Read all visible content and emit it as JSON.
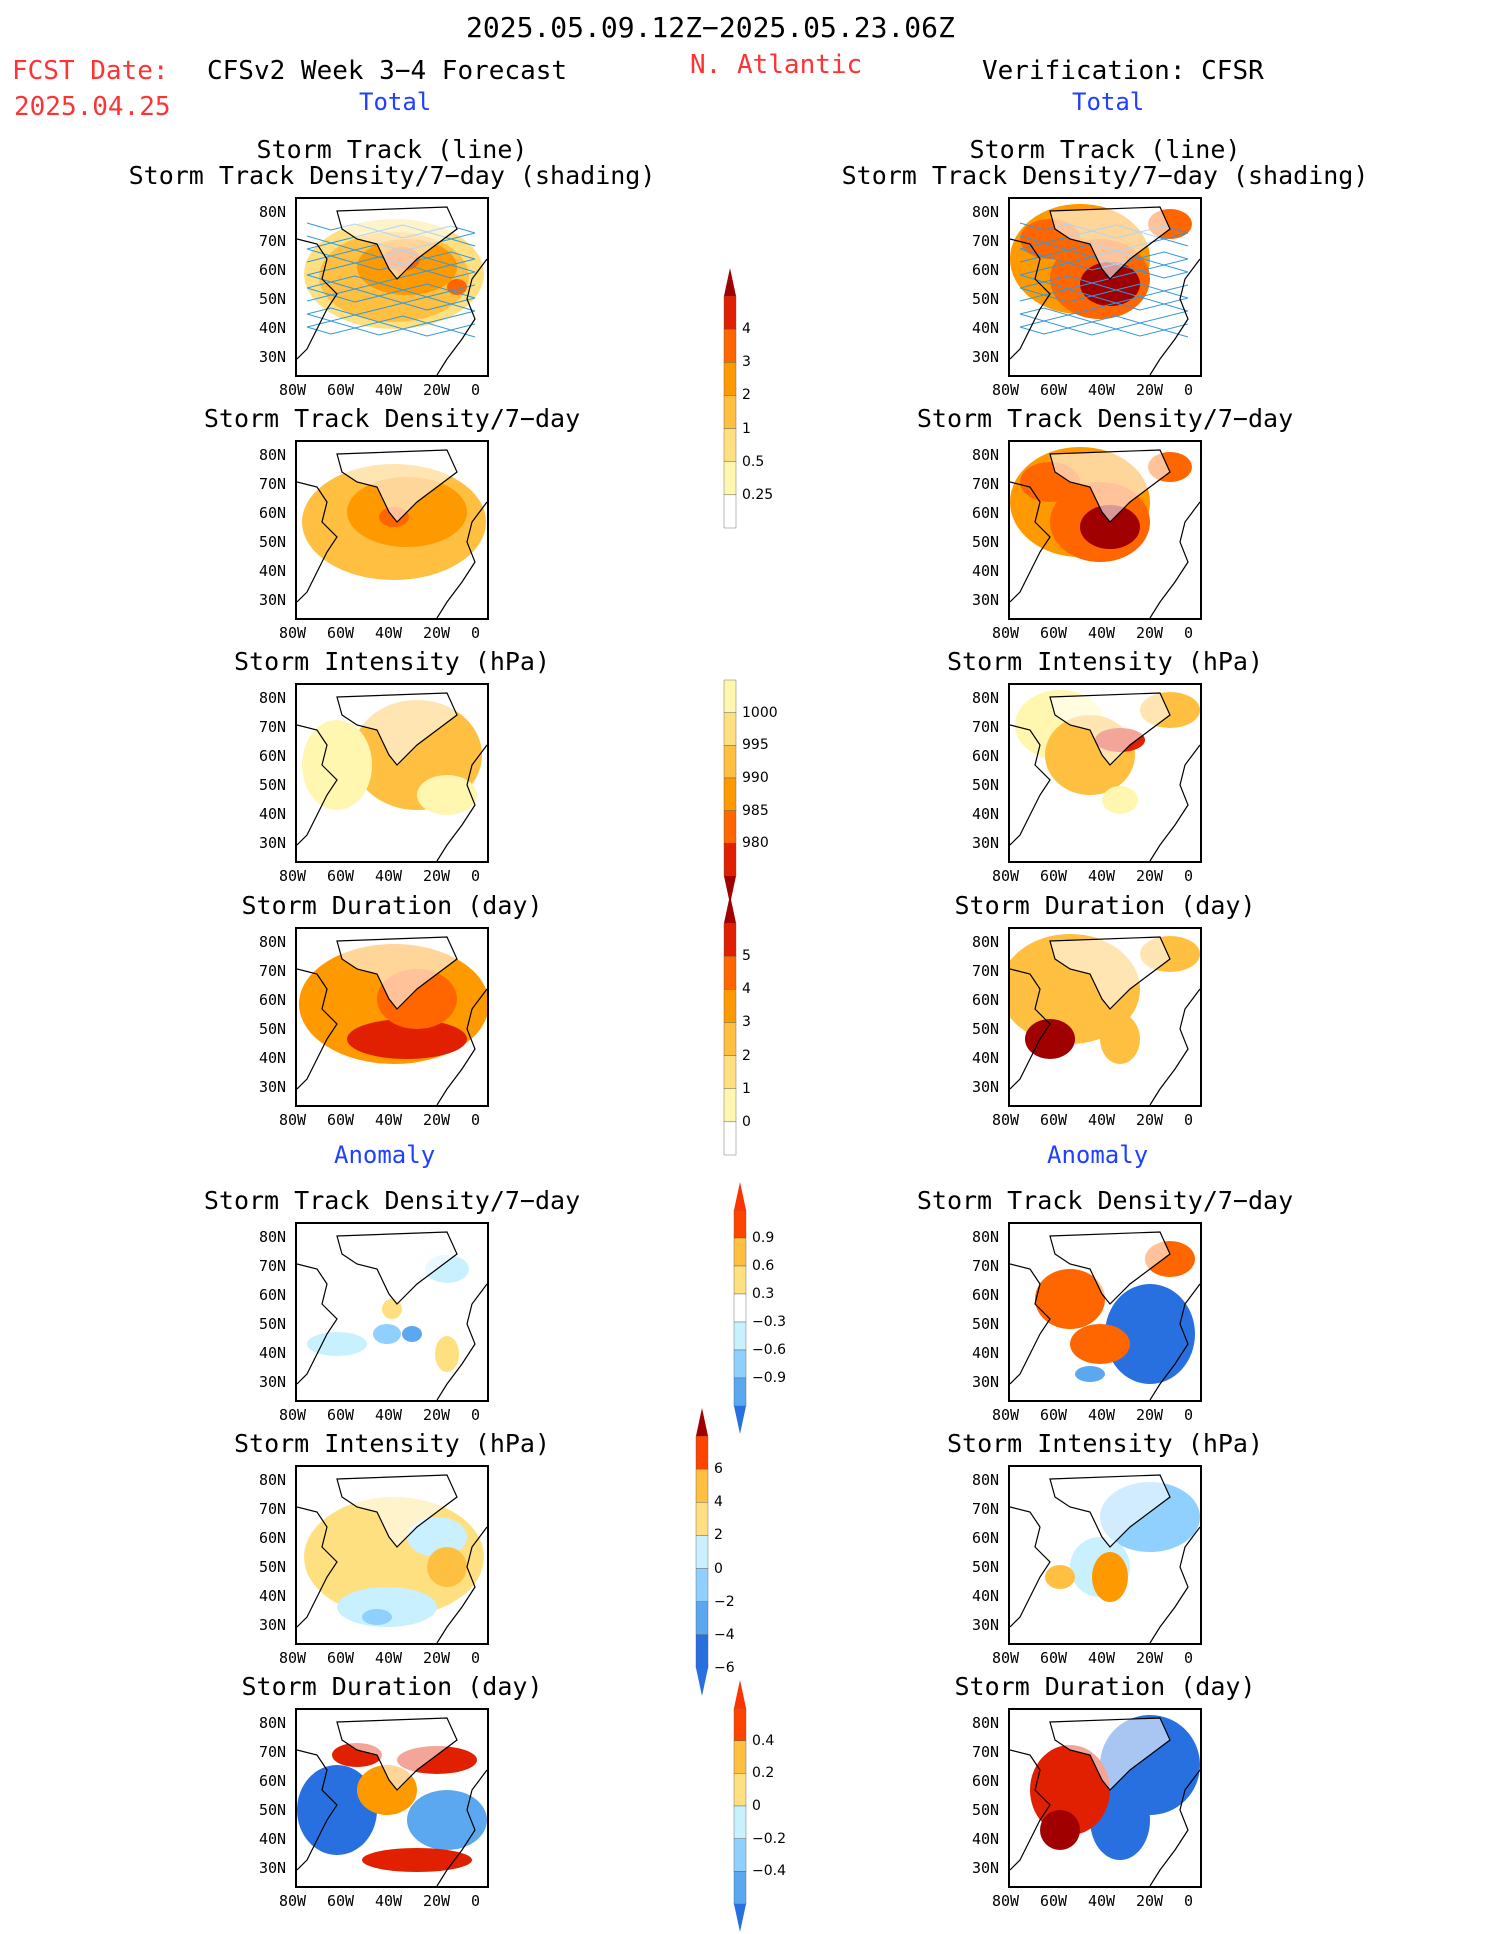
{
  "header": {
    "date_range": "2025.05.09.12Z−2025.05.23.06Z",
    "fcst_label": "FCST Date:",
    "fcst_date": "2025.04.25",
    "model_title": "CFSv2 Week 3−4 Forecast",
    "region": "N. Atlantic",
    "verification_title": "Verification: CFSR"
  },
  "sections": {
    "total": "Total",
    "anomaly": "Anomaly"
  },
  "axes": {
    "lat_ticks": [
      "80N",
      "70N",
      "60N",
      "50N",
      "40N",
      "30N"
    ],
    "lon_ticks": [
      "80W",
      "60W",
      "40W",
      "20W",
      "0"
    ]
  },
  "panels": {
    "track_line_title1": "Storm Track (line)",
    "track_line_title2": "Storm Track Density/7−day (shading)",
    "density_title": "Storm Track Density/7−day",
    "intensity_title": "Storm Intensity (hPa)",
    "duration_title": "Storm Duration (day)"
  },
  "colorbars": {
    "density_total": [
      "4",
      "3",
      "2",
      "1",
      "0.5",
      "0.25"
    ],
    "intensity_total": [
      "1000",
      "995",
      "990",
      "985",
      "980"
    ],
    "duration_total": [
      "5",
      "4",
      "3",
      "2",
      "1",
      "0"
    ],
    "density_anom": [
      "0.9",
      "0.6",
      "0.3",
      "−0.3",
      "−0.6",
      "−0.9"
    ],
    "intensity_anom": [
      "6",
      "4",
      "2",
      "0",
      "−2",
      "−4",
      "−6"
    ],
    "duration_anom": [
      "0.4",
      "0.2",
      "0",
      "−0.2",
      "−0.4"
    ]
  },
  "colors": {
    "title_red": "#ff3333",
    "title_blue": "#2040ff",
    "warm": [
      "#fff7b0",
      "#ffe080",
      "#ffbf40",
      "#ff9900",
      "#ff6600",
      "#e02000",
      "#a00000"
    ],
    "cool": [
      "#c8f0ff",
      "#90d0ff",
      "#5ca8f0",
      "#2870e0"
    ]
  },
  "chart_data": [
    {
      "type": "heatmap",
      "title": "Storm Track (line) / Storm Track Density/7−day (shading)",
      "panel": "forecast-total-1",
      "scale": [
        0.25,
        0.5,
        1,
        2,
        3,
        4
      ]
    },
    {
      "type": "heatmap",
      "title": "Storm Track Density/7−day",
      "panel": "forecast-total-2",
      "scale": [
        0.25,
        0.5,
        1,
        2,
        3,
        4
      ]
    },
    {
      "type": "heatmap",
      "title": "Storm Intensity (hPa)",
      "panel": "forecast-total-3",
      "scale": [
        1000,
        995,
        990,
        985,
        980
      ]
    },
    {
      "type": "heatmap",
      "title": "Storm Duration (day)",
      "panel": "forecast-total-4",
      "scale": [
        0,
        1,
        2,
        3,
        4,
        5
      ]
    },
    {
      "type": "heatmap",
      "title": "Storm Track Density/7−day",
      "panel": "forecast-anomaly-1",
      "scale": [
        -0.9,
        -0.6,
        -0.3,
        0.3,
        0.6,
        0.9
      ]
    },
    {
      "type": "heatmap",
      "title": "Storm Intensity (hPa)",
      "panel": "forecast-anomaly-2",
      "scale": [
        -6,
        -4,
        -2,
        0,
        2,
        4,
        6
      ]
    },
    {
      "type": "heatmap",
      "title": "Storm Duration (day)",
      "panel": "forecast-anomaly-3",
      "scale": [
        -0.4,
        -0.2,
        0,
        0.2,
        0.4
      ]
    }
  ]
}
